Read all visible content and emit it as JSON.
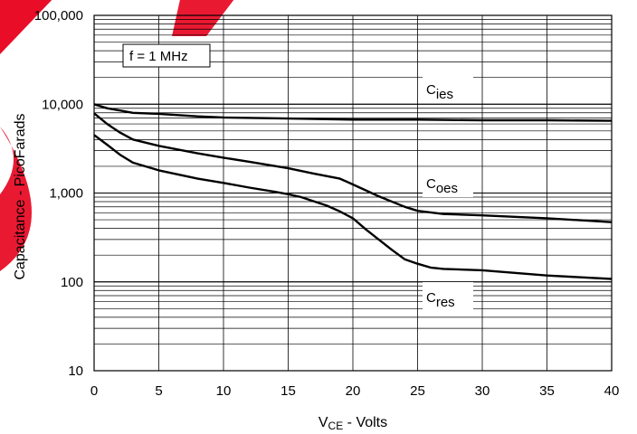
{
  "chart_data": {
    "type": "line",
    "xlabel_main": "V",
    "xlabel_sub": "CE",
    "xlabel_rest": " - Volts",
    "ylabel": "Capacitance - PicoFarads",
    "xlim": [
      0,
      40
    ],
    "ylim": [
      10,
      100000
    ],
    "y_scale": "log",
    "grid": true,
    "x_ticks": [
      0,
      5,
      10,
      15,
      20,
      25,
      30,
      35,
      40
    ],
    "x_tick_labels": [
      "0",
      "5",
      "10",
      "15",
      "20",
      "25",
      "30",
      "35",
      "40"
    ],
    "y_ticks": [
      10,
      100,
      1000,
      10000,
      100000
    ],
    "y_tick_labels": [
      "10",
      "100",
      "1,000",
      "10,000",
      "100,000"
    ],
    "annotation": "f = 1 MHz",
    "series": [
      {
        "name_main": "C",
        "name_sub": "ies",
        "x": [
          0,
          1,
          2,
          3,
          5,
          8,
          10,
          15,
          20,
          25,
          30,
          35,
          40
        ],
        "y": [
          10000,
          9000,
          8500,
          8000,
          7800,
          7300,
          7100,
          6900,
          6700,
          6700,
          6600,
          6600,
          6500
        ]
      },
      {
        "name_main": "C",
        "name_sub": "oes",
        "x": [
          0,
          1,
          2,
          3,
          5,
          8,
          10,
          12,
          15,
          17,
          19,
          20,
          22,
          24,
          25,
          27,
          30,
          35,
          40
        ],
        "y": [
          7900,
          6000,
          4800,
          4000,
          3400,
          2800,
          2500,
          2250,
          1900,
          1650,
          1450,
          1250,
          920,
          700,
          630,
          580,
          560,
          520,
          470
        ]
      },
      {
        "name_main": "C",
        "name_sub": "res",
        "x": [
          0,
          1,
          2,
          3,
          5,
          8,
          10,
          12,
          14,
          15,
          16,
          18,
          19,
          20,
          21,
          22,
          23,
          24,
          25,
          26,
          27,
          30,
          35,
          40
        ],
        "y": [
          4500,
          3500,
          2700,
          2200,
          1800,
          1450,
          1300,
          1150,
          1030,
          970,
          900,
          720,
          620,
          520,
          390,
          300,
          230,
          180,
          160,
          145,
          140,
          135,
          118,
          108
        ]
      }
    ]
  },
  "colors": {
    "line": "#000000",
    "grid": "#000000",
    "watermark": "#e8001c"
  }
}
